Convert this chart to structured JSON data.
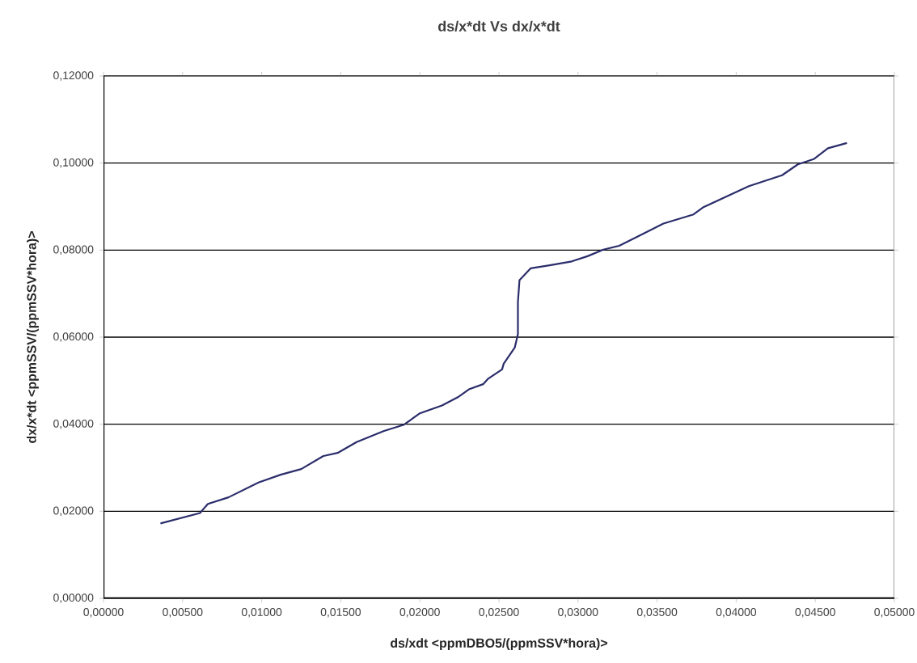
{
  "chart_data": {
    "type": "line",
    "title": "ds/x*dt Vs dx/x*dt",
    "xlabel": "ds/xdt <ppmDBO5/(ppmSSV*hora)>",
    "ylabel": "dx/x*dt <ppmSSV/(ppmSSV*hora)>",
    "series": [
      {
        "color": "#2b2d6b",
        "x": [
          0.0036,
          0.0061,
          0.0066,
          0.0079,
          0.0098,
          0.0112,
          0.0125,
          0.0139,
          0.0148,
          0.016,
          0.0177,
          0.019,
          0.02,
          0.0214,
          0.0224,
          0.0231,
          0.024,
          0.0243,
          0.0252,
          0.0253,
          0.026,
          0.0262,
          0.0262,
          0.0263,
          0.027,
          0.0282,
          0.0296,
          0.0306,
          0.0316,
          0.0326,
          0.0337,
          0.0354,
          0.0373,
          0.0379,
          0.0408,
          0.0429,
          0.0439,
          0.0449,
          0.0458,
          0.047
        ],
        "values": [
          0.0172,
          0.0196,
          0.0217,
          0.0232,
          0.0266,
          0.0284,
          0.0297,
          0.0327,
          0.0334,
          0.0359,
          0.0384,
          0.0399,
          0.0425,
          0.0443,
          0.0462,
          0.048,
          0.0492,
          0.0504,
          0.0526,
          0.0539,
          0.0576,
          0.0607,
          0.0681,
          0.0731,
          0.0758,
          0.0765,
          0.0774,
          0.0786,
          0.0801,
          0.081,
          0.083,
          0.0861,
          0.0882,
          0.0898,
          0.0947,
          0.0972,
          0.0997,
          0.1009,
          0.1034,
          0.1046
        ]
      }
    ],
    "xlim": [
      0,
      0.05
    ],
    "ylim": [
      0,
      0.12
    ],
    "xticks": [
      {
        "value": 0,
        "label": "0,00000"
      },
      {
        "value": 0.005,
        "label": "0,00500"
      },
      {
        "value": 0.01,
        "label": "0,01000"
      },
      {
        "value": 0.015,
        "label": "0,01500"
      },
      {
        "value": 0.02,
        "label": "0,02000"
      },
      {
        "value": 0.025,
        "label": "0,02500"
      },
      {
        "value": 0.03,
        "label": "0,03000"
      },
      {
        "value": 0.035,
        "label": "0,03500"
      },
      {
        "value": 0.04,
        "label": "0,04000"
      },
      {
        "value": 0.045,
        "label": "0,04500"
      },
      {
        "value": 0.05,
        "label": "0,05000"
      }
    ],
    "yticks": [
      {
        "value": 0,
        "label": "0,00000"
      },
      {
        "value": 0.02,
        "label": "0,02000"
      },
      {
        "value": 0.04,
        "label": "0,04000"
      },
      {
        "value": 0.06,
        "label": "0,06000"
      },
      {
        "value": 0.08,
        "label": "0,08000"
      },
      {
        "value": 0.1,
        "label": "0,10000"
      },
      {
        "value": 0.12,
        "label": "0,12000"
      }
    ],
    "grid": "y",
    "legend": false,
    "marker": "none",
    "line_style": "solid"
  }
}
